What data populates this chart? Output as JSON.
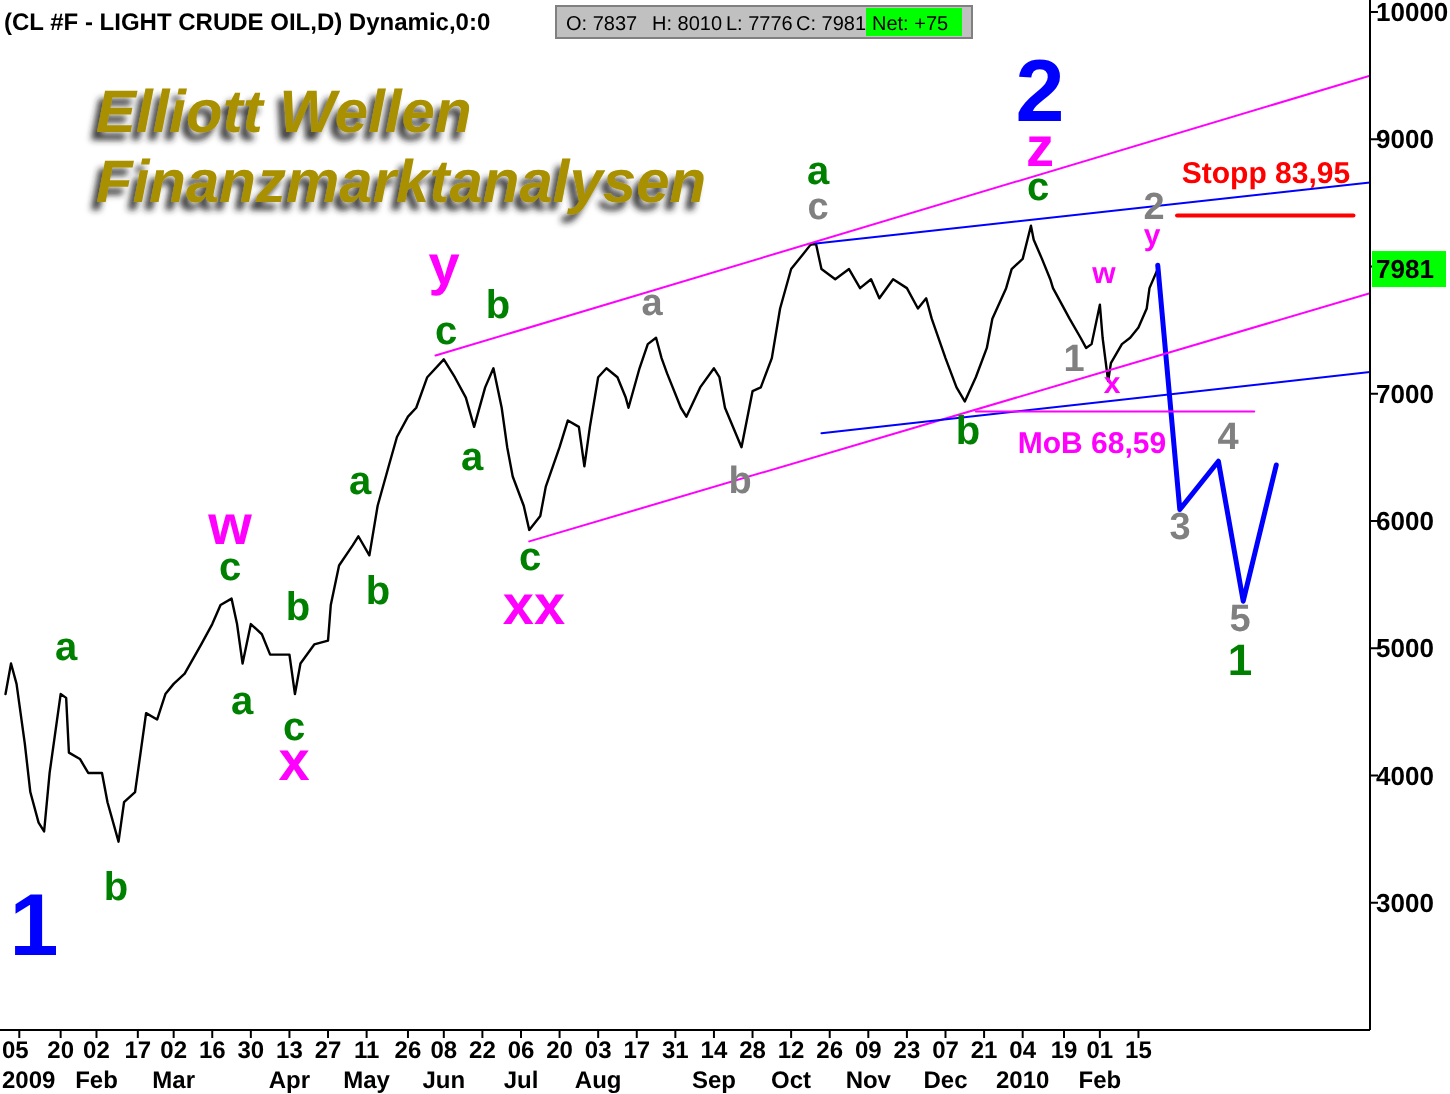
{
  "chart_data": {
    "type": "line",
    "title": "(CL #F - LIGHT CRUDE OIL,D) Dynamic,0:0",
    "subtitle": "Elliott Wellen\nFinanzmarktanalysen",
    "annotations": [
      "O: 7837",
      "H: 8010",
      "L: 7776",
      "C: 7981",
      "Net: +75",
      "7981",
      "1",
      "2",
      "a",
      "b",
      "c",
      "a",
      "b",
      "c",
      "a",
      "b",
      "c",
      "b",
      "a",
      "c",
      "a",
      "c",
      "b",
      "1",
      "w",
      "x",
      "y",
      "xx",
      "z",
      "w",
      "y",
      "x",
      "MoB 68,59",
      "c",
      "a",
      "b",
      "1",
      "2",
      "3",
      "4",
      "5",
      "Stopp 83,95"
    ],
    "xlim": [
      "2008-12-29",
      "2010-05-10"
    ],
    "xticks": [
      {
        "value": "2009-01-05",
        "label": "05\n2009"
      },
      {
        "value": "2009-01-20",
        "label": "20"
      },
      {
        "value": "2009-02-02",
        "label": "02\nFeb"
      },
      {
        "value": "2009-02-17",
        "label": "17"
      },
      {
        "value": "2009-03-02",
        "label": "02\nMar"
      },
      {
        "value": "2009-03-16",
        "label": "16"
      },
      {
        "value": "2009-03-30",
        "label": "30"
      },
      {
        "value": "2009-04-13",
        "label": "13\nApr"
      },
      {
        "value": "2009-04-27",
        "label": "27"
      },
      {
        "value": "2009-05-11",
        "label": "11\nMay"
      },
      {
        "value": "2009-05-26",
        "label": "26"
      },
      {
        "value": "2009-06-08",
        "label": "08\nJun"
      },
      {
        "value": "2009-06-22",
        "label": "22"
      },
      {
        "value": "2009-07-06",
        "label": "06\nJul"
      },
      {
        "value": "2009-07-20",
        "label": "20"
      },
      {
        "value": "2009-08-03",
        "label": "03\nAug"
      },
      {
        "value": "2009-08-17",
        "label": "17"
      },
      {
        "value": "2009-08-31",
        "label": "31"
      },
      {
        "value": "2009-09-14",
        "label": "14\nSep"
      },
      {
        "value": "2009-09-28",
        "label": "28"
      },
      {
        "value": "2009-10-12",
        "label": "12\nOct"
      },
      {
        "value": "2009-10-26",
        "label": "26"
      },
      {
        "value": "2009-11-09",
        "label": "09\nNov"
      },
      {
        "value": "2009-11-23",
        "label": "23"
      },
      {
        "value": "2009-12-07",
        "label": "07\nDec"
      },
      {
        "value": "2009-12-21",
        "label": "21"
      },
      {
        "value": "2010-01-04",
        "label": "04\n2010"
      },
      {
        "value": "2010-01-19",
        "label": "19"
      },
      {
        "value": "2010-02-01",
        "label": "01\nFeb"
      },
      {
        "value": "2010-02-15",
        "label": "15"
      }
    ],
    "ylim": [
      2000,
      10000
    ],
    "yticks": [
      3000,
      4000,
      5000,
      6000,
      7000,
      {
        "value": 8000,
        "label": null
      },
      9000,
      10000
    ],
    "grid": false,
    "legend": false,
    "marker": "none",
    "line_style": "solid",
    "series": [
      {
        "type": "line",
        "color": "#000000",
        "x": [
          "2008-12-31",
          "2009-01-02",
          "2009-01-04",
          "2009-01-07",
          "2009-01-09",
          "2009-01-12",
          "2009-01-14",
          "2009-01-16",
          "2009-01-20",
          "2009-01-22",
          "2009-01-23",
          "2009-01-27",
          "2009-01-30",
          "2009-02-04",
          "2009-02-06",
          "2009-02-10",
          "2009-02-12",
          "2009-02-16",
          "2009-02-18",
          "2009-02-20",
          "2009-02-24",
          "2009-02-27",
          "2009-03-02",
          "2009-03-06",
          "2009-03-12",
          "2009-03-16",
          "2009-03-19",
          "2009-03-23",
          "2009-03-25",
          "2009-03-27",
          "2009-03-30",
          "2009-04-03",
          "2009-04-06",
          "2009-04-09",
          "2009-04-13",
          "2009-04-15",
          "2009-04-17",
          "2009-04-22",
          "2009-04-27",
          "2009-04-28",
          "2009-05-01",
          "2009-05-06",
          "2009-05-08",
          "2009-05-12",
          "2009-05-15",
          "2009-05-19",
          "2009-05-22",
          "2009-05-26",
          "2009-05-29",
          "2009-06-02",
          "2009-06-08",
          "2009-06-12",
          "2009-06-16",
          "2009-06-19",
          "2009-06-23",
          "2009-06-26",
          "2009-06-29",
          "2009-07-01",
          "2009-07-03",
          "2009-07-07",
          "2009-07-09",
          "2009-07-13",
          "2009-07-15",
          "2009-07-20",
          "2009-07-23",
          "2009-07-27",
          "2009-07-29",
          "2009-07-31",
          "2009-08-03",
          "2009-08-06",
          "2009-08-10",
          "2009-08-13",
          "2009-08-14",
          "2009-08-18",
          "2009-08-21",
          "2009-08-24",
          "2009-08-26",
          "2009-08-28",
          "2009-09-02",
          "2009-09-04",
          "2009-09-09",
          "2009-09-14",
          "2009-09-16",
          "2009-09-18",
          "2009-09-24",
          "2009-09-28",
          "2009-10-01",
          "2009-10-05",
          "2009-10-08",
          "2009-10-12",
          "2009-10-15",
          "2009-10-19",
          "2009-10-21",
          "2009-10-23",
          "2009-10-28",
          "2009-11-02",
          "2009-11-06",
          "2009-11-10",
          "2009-11-13",
          "2009-11-18",
          "2009-11-23",
          "2009-11-27",
          "2009-11-30",
          "2009-12-02",
          "2009-12-07",
          "2009-12-11",
          "2009-12-14",
          "2009-12-18",
          "2009-12-22",
          "2009-12-24",
          "2009-12-29",
          "2009-12-31",
          "2010-01-04",
          "2010-01-07",
          "2010-01-08",
          "2010-01-11",
          "2010-01-14",
          "2010-01-15",
          "2010-01-21",
          "2010-01-25",
          "2010-01-27",
          "2010-01-29",
          "2010-02-01",
          "2010-02-02",
          "2010-02-04",
          "2010-02-05",
          "2010-02-09",
          "2010-02-12",
          "2010-02-15",
          "2010-02-18",
          "2010-02-19",
          "2010-02-22"
        ],
        "values": [
          4640,
          4880,
          4720,
          4250,
          3870,
          3630,
          3560,
          4020,
          4640,
          4610,
          4180,
          4130,
          4020,
          4020,
          3790,
          3480,
          3790,
          3870,
          4180,
          4490,
          4440,
          4640,
          4720,
          4800,
          5030,
          5190,
          5340,
          5390,
          5190,
          4880,
          5190,
          5110,
          4950,
          4950,
          4950,
          4640,
          4880,
          5030,
          5060,
          5340,
          5650,
          5810,
          5880,
          5730,
          6120,
          6430,
          6660,
          6820,
          6890,
          7130,
          7270,
          7130,
          6970,
          6740,
          7050,
          7200,
          6890,
          6580,
          6350,
          6120,
          5930,
          6040,
          6270,
          6580,
          6790,
          6740,
          6430,
          6740,
          7130,
          7200,
          7130,
          6970,
          6890,
          7200,
          7390,
          7440,
          7280,
          7160,
          6890,
          6820,
          7050,
          7200,
          7130,
          6890,
          6580,
          7020,
          7050,
          7280,
          7670,
          7980,
          8060,
          8170,
          8180,
          7980,
          7900,
          7980,
          7830,
          7900,
          7750,
          7900,
          7830,
          7670,
          7750,
          7590,
          7280,
          7050,
          6940,
          7130,
          7360,
          7590,
          7830,
          7980,
          8060,
          8320,
          8210,
          8060,
          7900,
          7830,
          7590,
          7440,
          7360,
          7390,
          7700,
          7440,
          7100,
          7240,
          7390,
          7440,
          7520,
          7670,
          7830,
          7980
        ]
      },
      {
        "type": "line",
        "color": "#0000ff",
        "x": [
          "2010-02-22",
          "2010-03-02",
          "2010-03-16",
          "2010-03-25",
          "2010-04-06"
        ],
        "values": [
          8010,
          6090,
          6470,
          5370,
          6440
        ]
      },
      {
        "type": "line",
        "color": "#ff00ff",
        "x": [
          "2009-06-05",
          "2010-05-10"
        ],
        "values": [
          7300,
          9500
        ]
      },
      {
        "type": "line",
        "color": "#ff00ff",
        "x": [
          "2009-07-09",
          "2010-05-10"
        ],
        "values": [
          5840,
          7790
        ]
      },
      {
        "type": "line",
        "color": "#0000ff",
        "x": [
          "2009-10-21",
          "2010-05-10"
        ],
        "values": [
          8180,
          8660
        ]
      },
      {
        "type": "line",
        "color": "#0000ff",
        "x": [
          "2009-10-23",
          "2010-05-10"
        ],
        "values": [
          6690,
          7170
        ]
      },
      {
        "type": "line",
        "color": "#ff00ff",
        "x": [
          "2009-12-18",
          "2010-03-29"
        ],
        "values": [
          6860,
          6860
        ]
      },
      {
        "type": "line",
        "color": "#ff0000",
        "x": [
          "2010-03-01",
          "2010-05-04"
        ],
        "values": [
          8400,
          8400
        ]
      }
    ]
  }
}
